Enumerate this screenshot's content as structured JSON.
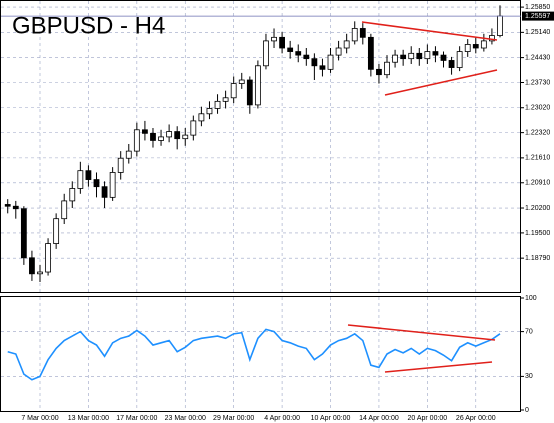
{
  "chart_data": [
    {
      "type": "candlestick",
      "title": "GBPUSD - H4",
      "categories": [
        null,
        null,
        null,
        null,
        "7 Mar 00:00",
        null,
        null,
        null,
        null,
        null,
        "13 Mar 00:00",
        null,
        null,
        null,
        null,
        null,
        "17 Mar 00:00",
        null,
        null,
        null,
        null,
        null,
        "23 Mar 00:00",
        null,
        null,
        null,
        null,
        null,
        "29 Mar 00:00",
        null,
        null,
        null,
        null,
        null,
        "4 Apr 00:00",
        null,
        null,
        null,
        null,
        null,
        "10 Apr 00:00",
        null,
        null,
        null,
        null,
        null,
        "14 Apr 00:00",
        null,
        null,
        null,
        null,
        null,
        "20 Apr 00:00",
        null,
        null,
        null,
        null,
        null,
        "26 Apr 00:00",
        null,
        null,
        null
      ],
      "open": [
        1.203,
        1.2025,
        1.2018,
        1.188,
        1.1835,
        1.184,
        1.192,
        1.199,
        1.204,
        1.2075,
        1.2125,
        1.21,
        1.208,
        1.205,
        1.212,
        1.216,
        1.218,
        1.224,
        1.223,
        1.221,
        1.222,
        1.2235,
        1.2215,
        1.2225,
        1.2265,
        1.2285,
        1.23,
        1.232,
        1.233,
        1.237,
        1.238,
        1.231,
        1.242,
        1.249,
        1.25,
        1.247,
        1.246,
        1.245,
        1.244,
        1.242,
        1.241,
        1.245,
        1.247,
        1.249,
        1.2525,
        1.25,
        1.241,
        1.2395,
        1.243,
        1.245,
        1.244,
        1.2455,
        1.244,
        1.246,
        1.245,
        1.2435,
        1.2415,
        1.246,
        1.248,
        1.247,
        1.249,
        1.2505
      ],
      "high": [
        1.2045,
        1.204,
        1.2025,
        1.19,
        1.186,
        1.1935,
        1.2005,
        1.206,
        1.2095,
        1.215,
        1.214,
        1.212,
        1.2095,
        1.2135,
        1.218,
        1.22,
        1.226,
        1.2265,
        1.2245,
        1.224,
        1.2255,
        1.225,
        1.2245,
        1.228,
        1.2305,
        1.232,
        1.234,
        1.235,
        1.239,
        1.24,
        1.239,
        1.2435,
        1.251,
        1.2525,
        1.2515,
        1.249,
        1.248,
        1.247,
        1.2455,
        1.244,
        1.247,
        1.249,
        1.251,
        1.2545,
        1.254,
        1.251,
        1.2425,
        1.245,
        1.2465,
        1.2465,
        1.2475,
        1.247,
        1.248,
        1.2475,
        1.246,
        1.2445,
        1.2475,
        1.2495,
        1.25,
        1.251,
        1.2525,
        1.259
      ],
      "low": [
        1.2005,
        1.199,
        1.186,
        1.1815,
        1.1812,
        1.183,
        1.1905,
        1.1975,
        1.202,
        1.206,
        1.208,
        1.205,
        1.202,
        1.204,
        1.21,
        1.2145,
        1.2165,
        1.221,
        1.219,
        1.2195,
        1.2205,
        1.2185,
        1.2195,
        1.221,
        1.225,
        1.227,
        1.2285,
        1.23,
        1.2315,
        1.2355,
        1.2285,
        1.23,
        1.241,
        1.247,
        1.2455,
        1.244,
        1.243,
        1.242,
        1.238,
        1.239,
        1.24,
        1.2435,
        1.2455,
        1.248,
        1.248,
        1.239,
        1.237,
        1.2385,
        1.2415,
        1.242,
        1.2425,
        1.242,
        1.2425,
        1.243,
        1.2415,
        1.2395,
        1.2405,
        1.2445,
        1.2455,
        1.246,
        1.248,
        1.25
      ],
      "close": [
        1.2025,
        1.2018,
        1.188,
        1.1835,
        1.184,
        1.192,
        1.199,
        1.204,
        1.2075,
        1.2125,
        1.21,
        1.208,
        1.205,
        1.212,
        1.216,
        1.218,
        1.224,
        1.223,
        1.221,
        1.222,
        1.2235,
        1.2215,
        1.2225,
        1.2265,
        1.2285,
        1.23,
        1.232,
        1.233,
        1.237,
        1.238,
        1.231,
        1.242,
        1.249,
        1.25,
        1.247,
        1.246,
        1.245,
        1.244,
        1.242,
        1.241,
        1.245,
        1.247,
        1.249,
        1.2525,
        1.25,
        1.241,
        1.2395,
        1.243,
        1.245,
        1.244,
        1.2455,
        1.244,
        1.246,
        1.245,
        1.2435,
        1.2415,
        1.246,
        1.248,
        1.247,
        1.249,
        1.2505,
        1.25597
      ],
      "current_price": 1.25597,
      "ylim": [
        1.1781,
        1.2605
      ],
      "yticks": [
        {
          "value": 1.1879,
          "label": "1.18790"
        },
        {
          "value": 1.195,
          "label": "1.19500"
        },
        {
          "value": 1.202,
          "label": "1.20200"
        },
        {
          "value": 1.2091,
          "label": "1.20910"
        },
        {
          "value": 1.2161,
          "label": "1.21610"
        },
        {
          "value": 1.2232,
          "label": "1.22320"
        },
        {
          "value": 1.2302,
          "label": "1.23020"
        },
        {
          "value": 1.2373,
          "label": "1.23730"
        },
        {
          "value": 1.2443,
          "label": "1.24430"
        },
        {
          "value": 1.2514,
          "label": "1.25140"
        },
        {
          "value": 1.2585,
          "label": "1.25850"
        }
      ],
      "grid": true
    },
    {
      "type": "line",
      "color": "#1e90ff",
      "values": [
        52,
        50,
        32,
        27,
        30,
        45,
        55,
        62,
        66,
        70,
        62,
        58,
        48,
        60,
        64,
        66,
        71,
        66,
        58,
        60,
        62,
        52,
        56,
        62,
        64,
        65,
        66,
        64,
        68,
        69,
        45,
        64,
        72,
        70,
        62,
        60,
        57,
        55,
        45,
        50,
        58,
        62,
        64,
        68,
        62,
        40,
        38,
        50,
        54,
        51,
        55,
        50,
        55,
        53,
        49,
        44,
        56,
        60,
        57,
        60,
        63,
        68
      ],
      "ylim": [
        0,
        100
      ],
      "yticks": [
        0,
        30,
        70,
        100
      ],
      "levels": [
        30,
        70
      ]
    }
  ]
}
